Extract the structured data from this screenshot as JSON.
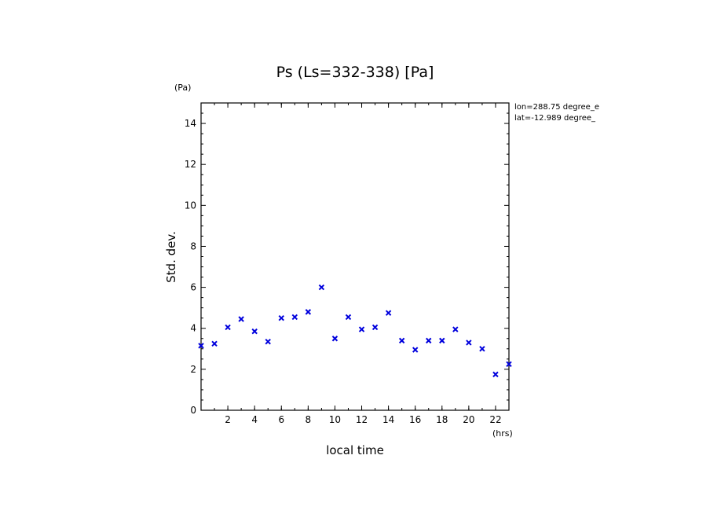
{
  "chart_data": {
    "type": "scatter",
    "title": "Ps (Ls=332-338) [Pa]",
    "xlabel": "local time",
    "ylabel": "Std. dev.",
    "x_unit": "(hrs)",
    "y_unit": "(Pa)",
    "xlim": [
      0,
      23
    ],
    "ylim": [
      0,
      15
    ],
    "xticks": [
      2,
      4,
      6,
      8,
      10,
      12,
      14,
      16,
      18,
      20,
      22
    ],
    "yticks": [
      0,
      2,
      4,
      6,
      8,
      10,
      12,
      14
    ],
    "annotations": [
      "lon=288.75 degree_e",
      "lat=-12.989 degree_"
    ],
    "marker": "x",
    "color": "#0000dd",
    "x": [
      0,
      1,
      2,
      3,
      4,
      5,
      6,
      7,
      8,
      9,
      10,
      11,
      12,
      13,
      14,
      15,
      16,
      17,
      18,
      19,
      20,
      21,
      22,
      23
    ],
    "values": [
      3.15,
      3.25,
      4.05,
      4.45,
      3.85,
      3.35,
      4.5,
      4.55,
      4.8,
      6.0,
      3.5,
      4.55,
      3.95,
      4.05,
      4.75,
      3.4,
      2.95,
      3.4,
      3.4,
      3.95,
      3.3,
      3.0,
      1.75,
      2.25
    ]
  }
}
